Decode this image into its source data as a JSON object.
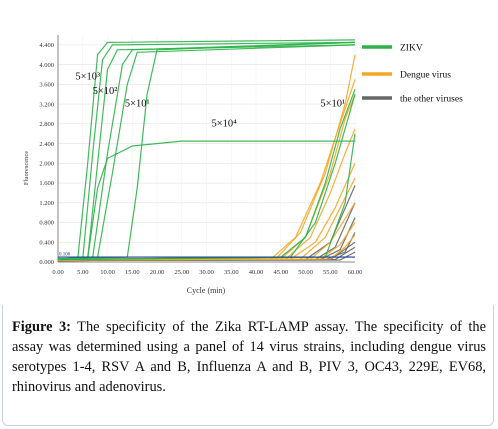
{
  "chart_data": {
    "type": "line",
    "xlabel": "Cycle (min)",
    "ylabel": "Fluorescence",
    "xlim": [
      0,
      60
    ],
    "ylim": [
      0,
      4.6
    ],
    "x_ticks": [
      "0.00",
      "5.00",
      "10.00",
      "15.00",
      "20.00",
      "25.00",
      "30.00",
      "35.00",
      "40.00",
      "45.00",
      "50.00",
      "55.00",
      "60.00"
    ],
    "y_ticks": [
      "0.000",
      "0.400",
      "0.800",
      "1.200",
      "1.600",
      "2.000",
      "2.400",
      "2.800",
      "3.200",
      "3.600",
      "4.000",
      "4.400"
    ],
    "threshold_label": "0.100",
    "threshold": 0.1,
    "legend": [
      {
        "name": "ZIKV",
        "color": "#2db34a"
      },
      {
        "name": "Dengue virus",
        "color": "#f5a623"
      },
      {
        "name": "the other viruses",
        "color": "#666666"
      }
    ],
    "annotations": [
      {
        "text": "5×10³",
        "x": 3.5,
        "y": 3.7
      },
      {
        "text": "5×10²",
        "x": 7.0,
        "y": 3.4
      },
      {
        "text": "5×10¹",
        "x": 13.5,
        "y": 3.15
      },
      {
        "text": "5×10⁴",
        "x": 31.0,
        "y": 2.75
      },
      {
        "text": "5×10¹",
        "x": 53.0,
        "y": 3.15
      }
    ],
    "series": [
      {
        "group": "ZIKV",
        "color": "#2db34a",
        "points": [
          [
            0,
            0.06
          ],
          [
            4,
            0.08
          ],
          [
            6,
            2.0
          ],
          [
            8,
            4.2
          ],
          [
            10,
            4.45
          ],
          [
            60,
            4.5
          ]
        ]
      },
      {
        "group": "ZIKV",
        "color": "#2db34a",
        "points": [
          [
            0,
            0.06
          ],
          [
            5,
            0.08
          ],
          [
            7,
            2.2
          ],
          [
            9,
            4.1
          ],
          [
            11,
            4.4
          ],
          [
            60,
            4.45
          ]
        ]
      },
      {
        "group": "ZIKV",
        "color": "#2db34a",
        "points": [
          [
            0,
            0.06
          ],
          [
            6,
            0.08
          ],
          [
            8,
            2.0
          ],
          [
            10,
            3.9
          ],
          [
            12,
            4.3
          ],
          [
            60,
            4.4
          ]
        ]
      },
      {
        "group": "ZIKV",
        "color": "#2db34a",
        "points": [
          [
            0,
            0.06
          ],
          [
            7,
            0.1
          ],
          [
            10,
            2.2
          ],
          [
            13,
            4.0
          ],
          [
            15,
            4.3
          ],
          [
            60,
            4.45
          ]
        ]
      },
      {
        "group": "ZIKV",
        "color": "#2db34a",
        "points": [
          [
            0,
            0.06
          ],
          [
            8,
            0.1
          ],
          [
            11,
            1.8
          ],
          [
            14,
            3.6
          ],
          [
            16,
            4.25
          ],
          [
            60,
            4.4
          ]
        ]
      },
      {
        "group": "ZIKV",
        "color": "#2db34a",
        "points": [
          [
            0,
            0.06
          ],
          [
            14,
            0.1
          ],
          [
            16,
            1.5
          ],
          [
            18,
            3.4
          ],
          [
            20,
            4.3
          ],
          [
            60,
            4.45
          ]
        ]
      },
      {
        "group": "ZIKV",
        "color": "#2db34a",
        "points": [
          [
            0,
            0.06
          ],
          [
            6,
            0.08
          ],
          [
            8,
            1.5
          ],
          [
            10,
            2.1
          ],
          [
            15,
            2.35
          ],
          [
            25,
            2.45
          ],
          [
            60,
            2.45
          ]
        ]
      },
      {
        "group": "ZIKV",
        "color": "#2db34a",
        "points": [
          [
            0,
            0.05
          ],
          [
            45,
            0.1
          ],
          [
            50,
            0.5
          ],
          [
            54,
            1.6
          ],
          [
            57,
            2.7
          ],
          [
            60,
            3.5
          ]
        ]
      },
      {
        "group": "ZIKV",
        "color": "#2db34a",
        "points": [
          [
            0,
            0.05
          ],
          [
            47,
            0.1
          ],
          [
            52,
            0.8
          ],
          [
            56,
            2.0
          ],
          [
            60,
            3.4
          ]
        ]
      },
      {
        "group": "ZIKV",
        "color": "#2db34a",
        "points": [
          [
            0,
            0.05
          ],
          [
            54,
            0.1
          ],
          [
            58,
            1.2
          ],
          [
            60,
            2.6
          ]
        ]
      },
      {
        "group": "Dengue virus",
        "color": "#f5a623",
        "points": [
          [
            0,
            0.04
          ],
          [
            43,
            0.06
          ],
          [
            48,
            0.5
          ],
          [
            53,
            1.6
          ],
          [
            57,
            2.8
          ],
          [
            60,
            3.7
          ]
        ]
      },
      {
        "group": "Dengue virus",
        "color": "#f5a623",
        "points": [
          [
            0,
            0.04
          ],
          [
            44,
            0.06
          ],
          [
            49,
            0.6
          ],
          [
            54,
            1.8
          ],
          [
            58,
            3.2
          ],
          [
            60,
            4.2
          ]
        ]
      },
      {
        "group": "Dengue virus",
        "color": "#f5a623",
        "points": [
          [
            0,
            0.04
          ],
          [
            45,
            0.06
          ],
          [
            50,
            0.5
          ],
          [
            55,
            1.8
          ],
          [
            58,
            2.9
          ],
          [
            60,
            3.4
          ]
        ]
      },
      {
        "group": "Dengue virus",
        "color": "#f5a623",
        "points": [
          [
            0,
            0.04
          ],
          [
            46,
            0.06
          ],
          [
            51,
            0.5
          ],
          [
            55,
            1.4
          ],
          [
            58,
            2.2
          ],
          [
            60,
            2.7
          ]
        ]
      },
      {
        "group": "Dengue virus",
        "color": "#f5a623",
        "points": [
          [
            0,
            0.04
          ],
          [
            47,
            0.06
          ],
          [
            52,
            0.4
          ],
          [
            56,
            1.1
          ],
          [
            60,
            2.0
          ]
        ]
      },
      {
        "group": "Dengue virus",
        "color": "#f5a623",
        "points": [
          [
            0,
            0.04
          ],
          [
            49,
            0.06
          ],
          [
            54,
            0.5
          ],
          [
            58,
            1.3
          ],
          [
            60,
            1.7
          ]
        ]
      },
      {
        "group": "Dengue virus",
        "color": "#f5a623",
        "points": [
          [
            0,
            0.04
          ],
          [
            51,
            0.06
          ],
          [
            55,
            0.4
          ],
          [
            60,
            1.2
          ]
        ]
      },
      {
        "group": "Dengue virus",
        "color": "#f5a623",
        "points": [
          [
            0,
            0.04
          ],
          [
            53,
            0.06
          ],
          [
            57,
            0.35
          ],
          [
            60,
            0.8
          ]
        ]
      },
      {
        "group": "Dengue virus",
        "color": "#f5a623",
        "points": [
          [
            0,
            0.04
          ],
          [
            55,
            0.06
          ],
          [
            58,
            0.3
          ],
          [
            60,
            0.55
          ]
        ]
      },
      {
        "group": "the other viruses",
        "color": "#666666",
        "points": [
          [
            0,
            0.03
          ],
          [
            50,
            0.05
          ],
          [
            55,
            0.4
          ],
          [
            60,
            1.55
          ]
        ]
      },
      {
        "group": "the other viruses",
        "color": "#666666",
        "points": [
          [
            0,
            0.03
          ],
          [
            52,
            0.05
          ],
          [
            56,
            0.3
          ],
          [
            60,
            1.2
          ]
        ]
      },
      {
        "group": "the other viruses",
        "color": "#666666",
        "points": [
          [
            0,
            0.03
          ],
          [
            53,
            0.05
          ],
          [
            57,
            0.25
          ],
          [
            60,
            0.9
          ]
        ]
      },
      {
        "group": "the other viruses",
        "color": "#666666",
        "points": [
          [
            0,
            0.03
          ],
          [
            54,
            0.05
          ],
          [
            58,
            0.2
          ],
          [
            60,
            0.6
          ]
        ]
      },
      {
        "group": "the other viruses",
        "color": "#666666",
        "points": [
          [
            0,
            0.03
          ],
          [
            55,
            0.05
          ],
          [
            60,
            0.4
          ]
        ]
      },
      {
        "group": "the other viruses",
        "color": "#666666",
        "points": [
          [
            0,
            0.03
          ],
          [
            56,
            0.05
          ],
          [
            60,
            0.3
          ]
        ]
      },
      {
        "group": "the other viruses",
        "color": "#666666",
        "points": [
          [
            0,
            0.03
          ],
          [
            57,
            0.04
          ],
          [
            60,
            0.2
          ]
        ]
      }
    ]
  },
  "caption": {
    "label": "Figure 3:",
    "text": " The specificity of the Zika RT-LAMP assay. The specificity of the assay was determined using a panel of 14 virus strains, including dengue virus serotypes 1-4, RSV A and B, Influenza A and B, PIV 3, OC43, 229E, EV68, rhinovirus and adenovirus."
  }
}
